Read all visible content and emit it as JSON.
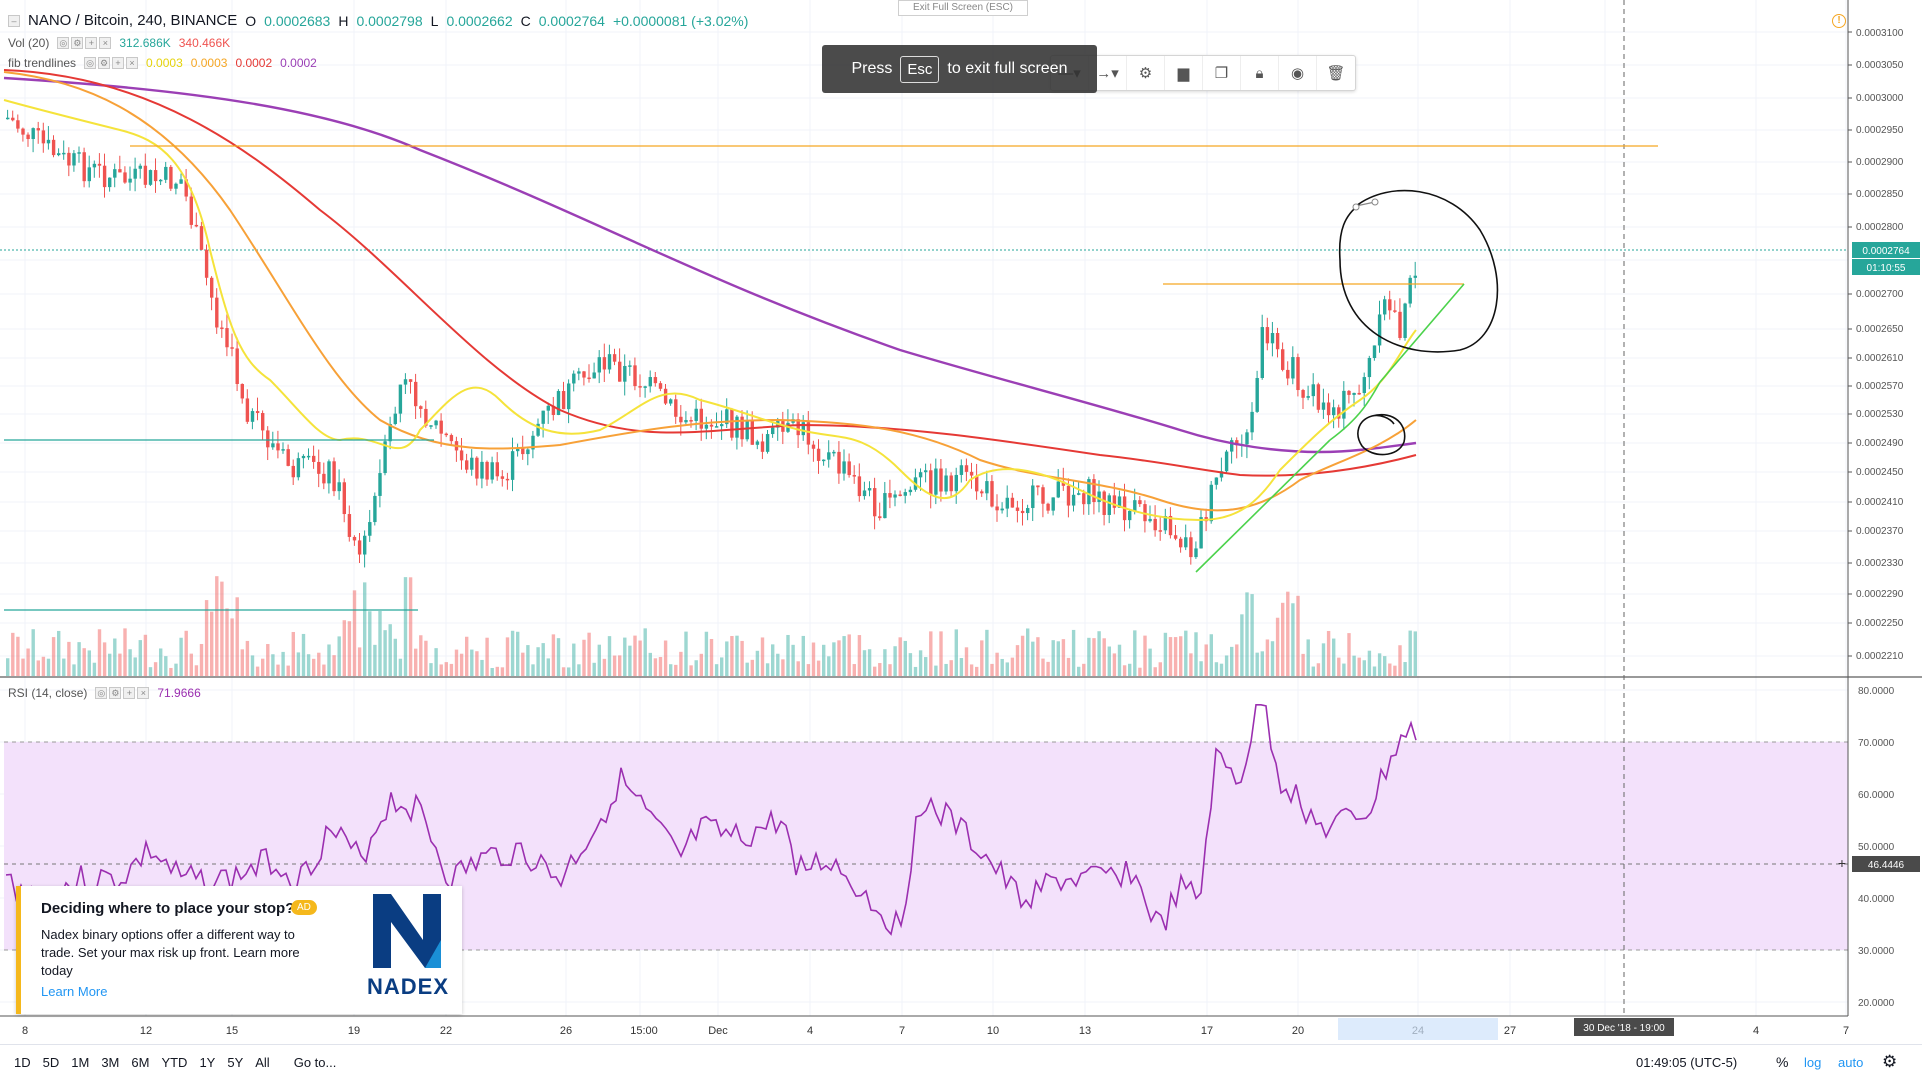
{
  "legend": {
    "symbol": "NANO / Bitcoin, 240, BINANCE",
    "open_label": "O",
    "open": "0.0002683",
    "high_label": "H",
    "high": "0.0002798",
    "low_label": "L",
    "low": "0.0002662",
    "close_label": "C",
    "close": "0.0002764",
    "change": "+0.0000081 (+3.02%)"
  },
  "indicators": {
    "vol_name": "Vol (20)",
    "vol_value1": "312.686K",
    "vol_value2": "340.466K",
    "fib_name": "fib trendlines",
    "fib_values": [
      "0.0003",
      "0.0003",
      "0.0002",
      "0.0002"
    ],
    "rsi_name": "RSI (14, close)",
    "rsi_value": "71.9666"
  },
  "overlay": {
    "exit_tooltip": "Exit Full Screen (ESC)",
    "press": "Press",
    "key": "Esc",
    "to_exit": "to exit full screen"
  },
  "ad": {
    "title": "Deciding where to place your stop?",
    "badge": "AD",
    "body": "Nadex binary options offer a different way to trade. Set your max risk up front. Learn more today",
    "link": "Learn More",
    "brand": "NADEX"
  },
  "price_axis": {
    "labels": [
      "0.0003100",
      "0.0003050",
      "0.0003000",
      "0.0002950",
      "0.0002900",
      "0.0002850",
      "0.0002800",
      "0.0002700",
      "0.0002650",
      "0.0002610",
      "0.0002570",
      "0.0002530",
      "0.0002490",
      "0.0002450",
      "0.0002410",
      "0.0002370",
      "0.0002330",
      "0.0002290",
      "0.0002250",
      "0.0002210"
    ],
    "current_price": "0.0002764",
    "countdown": "01:10:55"
  },
  "rsi_axis": {
    "labels": [
      "80.0000",
      "70.0000",
      "60.0000",
      "50.0000",
      "40.0000",
      "30.0000",
      "20.0000"
    ],
    "crosshair_value": "46.4446"
  },
  "time_axis": {
    "labels": [
      "8",
      "12",
      "15",
      "19",
      "22",
      "26",
      "15:00",
      "Dec",
      "4",
      "7",
      "10",
      "13",
      "17",
      "20",
      "24",
      "27",
      "4",
      "7"
    ],
    "crosshair_label": "30 Dec '18 - 19:00"
  },
  "bottom": {
    "ranges": [
      "1D",
      "5D",
      "1M",
      "3M",
      "6M",
      "YTD",
      "1Y",
      "5Y",
      "All"
    ],
    "goto": "Go to...",
    "clock": "01:49:05 (UTC-5)",
    "percent": "%",
    "log": "log",
    "auto": "auto"
  },
  "colors": {
    "up": "#26a69a",
    "down": "#ef5350",
    "ma_fast": "#f5e33b",
    "ma_mid": "#f7a138",
    "ma_slow": "#e53935",
    "ma_200": "#9b3fb5",
    "rsi_line": "#9b2fb0",
    "rsi_band": "#f3e1fb"
  },
  "icons": {
    "alert": "alert-clock-icon",
    "toolbar": [
      "line-style-icon",
      "line-end-icon",
      "settings-gear-icon",
      "fill-icon",
      "clone-icon",
      "lock-icon",
      "eye-icon",
      "trash-icon"
    ],
    "settings": "gear-icon"
  }
}
